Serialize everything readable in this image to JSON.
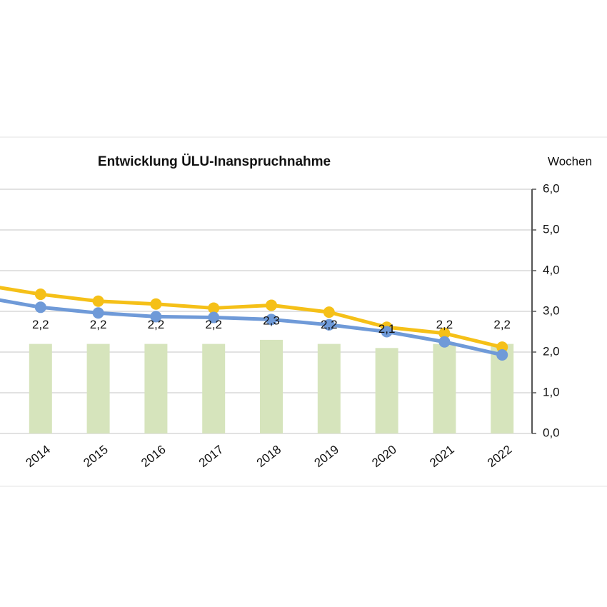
{
  "chart_data": {
    "type": "bar-line",
    "title": "Entwicklung ÜLU-Inanspruchnahme",
    "y_axis_label": "Wochen",
    "categories": [
      null,
      "2014",
      "2015",
      "2016",
      "2017",
      "2018",
      "2019",
      "2020",
      "2021",
      "2022"
    ],
    "bars": {
      "color": "#d6e4bc",
      "values": [
        null,
        2.2,
        2.2,
        2.2,
        2.2,
        2.3,
        2.2,
        2.1,
        2.2,
        2.2
      ],
      "value_labels": [
        null,
        "2,2",
        "2,2",
        "2,2",
        "2,2",
        "2,3",
        "2,2",
        "2,1",
        "2,2",
        "2,2"
      ]
    },
    "series": [
      {
        "color": "#f5c018",
        "values": [
          3.65,
          3.42,
          3.25,
          3.18,
          3.08,
          3.15,
          2.98,
          2.61,
          2.46,
          2.12
        ]
      },
      {
        "color": "#6f9ad8",
        "values": [
          3.35,
          3.1,
          2.96,
          2.87,
          2.85,
          2.8,
          2.67,
          2.5,
          2.25,
          1.93
        ]
      }
    ],
    "ylim": [
      0,
      6
    ],
    "yticks": [
      {
        "value": 0,
        "label": "0,0"
      },
      {
        "value": 1,
        "label": "1,0"
      },
      {
        "value": 2,
        "label": "2,0"
      },
      {
        "value": 3,
        "label": "3,0"
      },
      {
        "value": 4,
        "label": "4,0"
      },
      {
        "value": 5,
        "label": "5,0"
      },
      {
        "value": 6,
        "label": "6,0"
      }
    ],
    "grid": true
  }
}
